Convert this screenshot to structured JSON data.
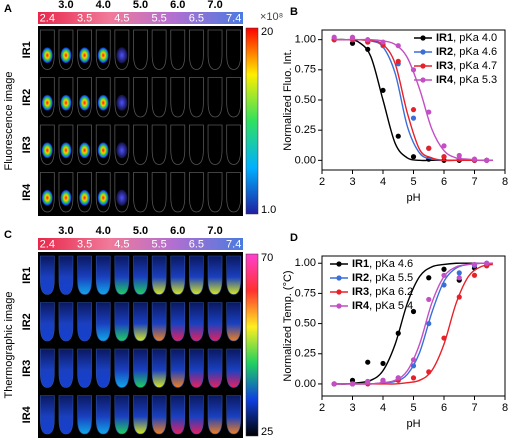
{
  "image_panels": [
    {
      "label": "A",
      "ylabel": "Fluorescence image",
      "ph_top": [
        "3.0",
        "4.0",
        "5.0",
        "6.0",
        "7.0"
      ],
      "ph_bottom": [
        "2.4",
        "3.5",
        "4.5",
        "5.5",
        "6.5",
        "7.4"
      ],
      "rows": [
        "IR1",
        "IR2",
        "IR3",
        "IR4"
      ],
      "colorbar_max": "20",
      "colorbar_min": "1.0",
      "colorbar_unit": "×10⁸"
    },
    {
      "label": "C",
      "ylabel": "Thermographic image",
      "ph_top": [
        "3.0",
        "4.0",
        "5.0",
        "6.0",
        "7.0"
      ],
      "ph_bottom": [
        "2.4",
        "3.5",
        "4.5",
        "5.5",
        "6.5",
        "7.4"
      ],
      "rows": [
        "IR1",
        "IR2",
        "IR3",
        "IR4"
      ],
      "colorbar_max": "70",
      "colorbar_min": "25"
    }
  ],
  "chart_data": [
    {
      "type": "scatter",
      "label": "B",
      "xlabel": "pH",
      "ylabel": "Normalized Fluo. Int.",
      "legend": "upper right",
      "x": [
        2.4,
        3.0,
        3.5,
        4.0,
        4.5,
        5.0,
        5.5,
        6.0,
        6.5,
        7.0,
        7.4
      ],
      "fit_x": [
        2.4,
        2.8,
        3.2,
        3.6,
        4.0,
        4.4,
        4.8,
        5.2,
        5.6,
        6.0,
        6.4,
        6.8,
        7.2,
        7.6
      ],
      "xlim": [
        2,
        8
      ],
      "xticks": [
        2,
        3,
        4,
        5,
        6,
        7,
        8
      ],
      "ylim": [
        -0.08,
        1.08
      ],
      "yticks": [
        {
          "value": 0,
          "label": "0.00"
        },
        {
          "value": 0.25,
          "label": "0.25"
        },
        {
          "value": 0.5,
          "label": "0.50"
        },
        {
          "value": 0.75,
          "label": "0.75"
        },
        {
          "value": 1,
          "label": "1.00"
        }
      ],
      "series": [
        {
          "name": "IR1, pKa 4.0",
          "color": "#000000",
          "values": [
            1.0,
            0.97,
            0.92,
            0.58,
            0.2,
            0.03,
            0.01,
            0,
            0,
            0,
            0
          ],
          "fit": [
            1.0,
            1.0,
            0.98,
            0.86,
            0.5,
            0.14,
            0.02,
            0,
            0,
            0,
            0,
            0,
            0,
            0
          ]
        },
        {
          "name": "IR2, pKa 4.6",
          "color": "#3a6fd8",
          "values": [
            1.0,
            1.0,
            0.98,
            0.95,
            0.8,
            0.35,
            0.1,
            0.03,
            0.01,
            0,
            0
          ],
          "fit": [
            1.0,
            1.0,
            1.0,
            0.99,
            0.94,
            0.72,
            0.28,
            0.06,
            0.01,
            0,
            0,
            0,
            0,
            0
          ]
        },
        {
          "name": "IR3, pKa 4.7",
          "color": "#e8202a",
          "values": [
            1.0,
            1.0,
            0.98,
            0.96,
            0.82,
            0.42,
            0.1,
            0.03,
            0.01,
            0,
            0
          ],
          "fit": [
            1.0,
            1.0,
            1.0,
            0.99,
            0.96,
            0.8,
            0.39,
            0.09,
            0.02,
            0,
            0,
            0,
            0,
            0
          ]
        },
        {
          "name": "IR4, pKa 5.3",
          "color": "#c44ec4",
          "values": [
            1.02,
            1.02,
            1.0,
            0.98,
            0.95,
            0.75,
            0.4,
            0.12,
            0.04,
            0.01,
            0
          ],
          "fit": [
            1.0,
            1.0,
            1.0,
            1.0,
            0.99,
            0.96,
            0.85,
            0.59,
            0.26,
            0.08,
            0.02,
            0.01,
            0,
            0
          ]
        }
      ]
    },
    {
      "type": "scatter",
      "label": "D",
      "xlabel": "pH",
      "ylabel": "Normalized Temp. (°C)",
      "legend": "upper left",
      "x": [
        2.4,
        3.0,
        3.5,
        4.0,
        4.5,
        5.0,
        5.5,
        6.0,
        6.5,
        7.0,
        7.4
      ],
      "fit_x": [
        2.4,
        2.8,
        3.2,
        3.6,
        4.0,
        4.4,
        4.8,
        5.2,
        5.6,
        6.0,
        6.4,
        6.8,
        7.2,
        7.6
      ],
      "xlim": [
        2,
        8
      ],
      "xticks": [
        2,
        3,
        4,
        5,
        6,
        7,
        8
      ],
      "ylim": [
        -0.1,
        1.06
      ],
      "yticks": [
        {
          "value": 0,
          "label": "0.00"
        },
        {
          "value": 0.25,
          "label": "0.25"
        },
        {
          "value": 0.5,
          "label": "0.50"
        },
        {
          "value": 0.75,
          "label": "0.75"
        },
        {
          "value": 1,
          "label": "1.00"
        }
      ],
      "series": [
        {
          "name": "IR1, pKa 4.6",
          "color": "#000000",
          "values": [
            0,
            0.03,
            0.18,
            0.17,
            0.42,
            0.6,
            0.88,
            0.95,
            0.86,
            0.96,
            0.98
          ],
          "fit": [
            0,
            0,
            0.01,
            0.03,
            0.11,
            0.33,
            0.67,
            0.89,
            0.97,
            0.99,
            1.0,
            1.0,
            1.0,
            1.0
          ]
        },
        {
          "name": "IR2, pKa 5.5",
          "color": "#3a6fd8",
          "values": [
            0,
            0,
            0.02,
            0.03,
            0.05,
            0.15,
            0.5,
            0.82,
            0.92,
            0.98,
            1.0
          ],
          "fit": [
            0,
            0,
            0,
            0,
            0.01,
            0.02,
            0.08,
            0.26,
            0.59,
            0.85,
            0.96,
            0.99,
            1.0,
            1.0
          ]
        },
        {
          "name": "IR3, pKa 6.2",
          "color": "#e8202a",
          "values": [
            0,
            0,
            0,
            0.02,
            0.03,
            0.05,
            0.1,
            0.38,
            0.72,
            0.9,
            0.98
          ],
          "fit": [
            0,
            0,
            0,
            0,
            0,
            0,
            0.01,
            0.03,
            0.11,
            0.33,
            0.67,
            0.89,
            0.97,
            0.99
          ]
        },
        {
          "name": "IR4, pKa 5.4",
          "color": "#c44ec4",
          "values": [
            0,
            0,
            0.02,
            0.03,
            0.05,
            0.2,
            0.7,
            0.9,
            0.88,
            0.99,
            1.0
          ],
          "fit": [
            0,
            0,
            0,
            0,
            0.01,
            0.03,
            0.11,
            0.33,
            0.67,
            0.89,
            0.97,
            0.99,
            1.0,
            1.0
          ]
        }
      ]
    }
  ]
}
